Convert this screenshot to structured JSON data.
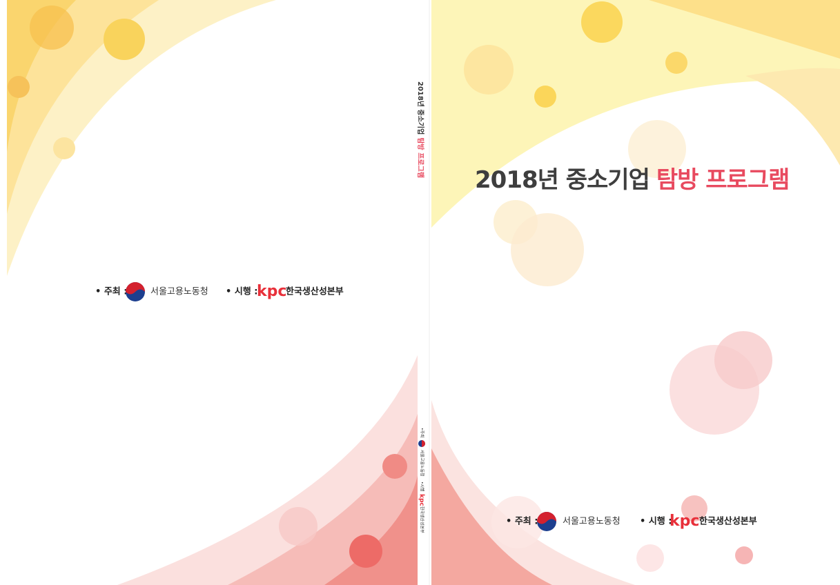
{
  "spine": {
    "title_main": "2018년 중소기업",
    "title_highlight": "탐방 프로그램",
    "host_label": "•주최",
    "host": "서울고용노동청",
    "operator_label": "•시행",
    "operator_logo": "kpc",
    "operator": "한국생산성본부"
  },
  "front_cover": {
    "title_main": "2018년 중소기업",
    "title_highlight": "탐방 프로그램",
    "host_label": "• 주최 :",
    "host": "서울고용노동청",
    "operator_label": "• 시행 :",
    "operator_logo": "kpc",
    "operator": "한국생산성본부"
  },
  "back_cover": {
    "host_label": "• 주최 :",
    "host": "서울고용노동청",
    "operator_label": "• 시행 :",
    "operator_logo": "kpc",
    "operator": "한국생산성본부"
  }
}
